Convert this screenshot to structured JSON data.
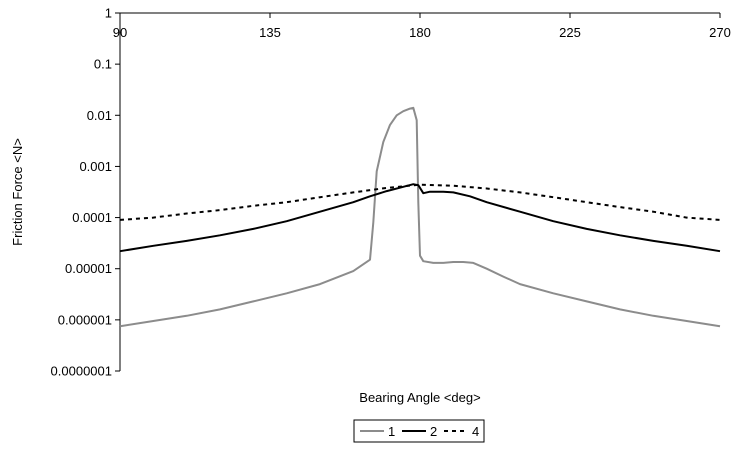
{
  "chart_data": {
    "type": "line",
    "xlabel": "Bearing Angle <deg>",
    "ylabel": "Friction Force <N>",
    "xlim": [
      90,
      270
    ],
    "ylim": [
      1e-07,
      1
    ],
    "yscale": "log",
    "x_axis_position": "top",
    "x_ticks": [
      90,
      135,
      180,
      225,
      270
    ],
    "x_tick_labels": [
      "90",
      "135",
      "180",
      "225",
      "270"
    ],
    "y_ticks": [
      1e-07,
      1e-06,
      1e-05,
      0.0001,
      0.001,
      0.01,
      0.1,
      1
    ],
    "y_tick_labels": [
      "0.0000001",
      "0.000001",
      "0.00001",
      "0.0001",
      "0.001",
      "0.01",
      "0.1",
      "1"
    ],
    "grid": false,
    "legend_position": "bottom",
    "series": [
      {
        "name": "1",
        "color": "#8c8c8c",
        "style": "solid",
        "x": [
          90,
          100,
          110,
          120,
          130,
          140,
          150,
          160,
          165,
          166,
          167,
          169,
          171,
          173,
          175,
          177,
          178,
          179,
          179.5,
          180,
          181,
          184,
          187,
          190,
          193,
          196,
          200,
          205,
          210,
          220,
          230,
          240,
          250,
          260,
          270
        ],
        "y": [
          7.5e-07,
          9.5e-07,
          1.2e-06,
          1.6e-06,
          2.3e-06,
          3.3e-06,
          5e-06,
          9e-06,
          1.5e-05,
          8e-05,
          0.0008,
          0.003,
          0.0065,
          0.01,
          0.012,
          0.0135,
          0.014,
          0.008,
          0.0002,
          1.8e-05,
          1.4e-05,
          1.3e-05,
          1.3e-05,
          1.35e-05,
          1.35e-05,
          1.3e-05,
          1e-05,
          7e-06,
          5e-06,
          3.3e-06,
          2.3e-06,
          1.6e-06,
          1.2e-06,
          9.5e-07,
          7.5e-07
        ]
      },
      {
        "name": "2",
        "color": "#000000",
        "style": "solid",
        "x": [
          90,
          100,
          110,
          120,
          130,
          140,
          150,
          160,
          165,
          170,
          175,
          178,
          179.5,
          181,
          183,
          185,
          187,
          190,
          195,
          200,
          210,
          220,
          230,
          240,
          250,
          260,
          270
        ],
        "y": [
          2.2e-05,
          2.8e-05,
          3.5e-05,
          4.5e-05,
          6e-05,
          8.5e-05,
          0.00013,
          0.0002,
          0.00026,
          0.00033,
          0.0004,
          0.00045,
          0.00043,
          0.0003,
          0.00032,
          0.00032,
          0.00032,
          0.00031,
          0.00026,
          0.0002,
          0.00013,
          8.5e-05,
          6e-05,
          4.5e-05,
          3.5e-05,
          2.8e-05,
          2.2e-05
        ]
      },
      {
        "name": "4",
        "color": "#000000",
        "style": "dashed",
        "x": [
          90,
          100,
          110,
          120,
          130,
          140,
          150,
          160,
          170,
          180,
          190,
          200,
          210,
          220,
          230,
          240,
          250,
          260,
          270
        ],
        "y": [
          9e-05,
          0.0001,
          0.00012,
          0.00014,
          0.00017,
          0.0002,
          0.00025,
          0.00031,
          0.00038,
          0.00044,
          0.00042,
          0.00037,
          0.00031,
          0.00025,
          0.0002,
          0.00016,
          0.00013,
          0.0001,
          9e-05
        ]
      }
    ]
  }
}
